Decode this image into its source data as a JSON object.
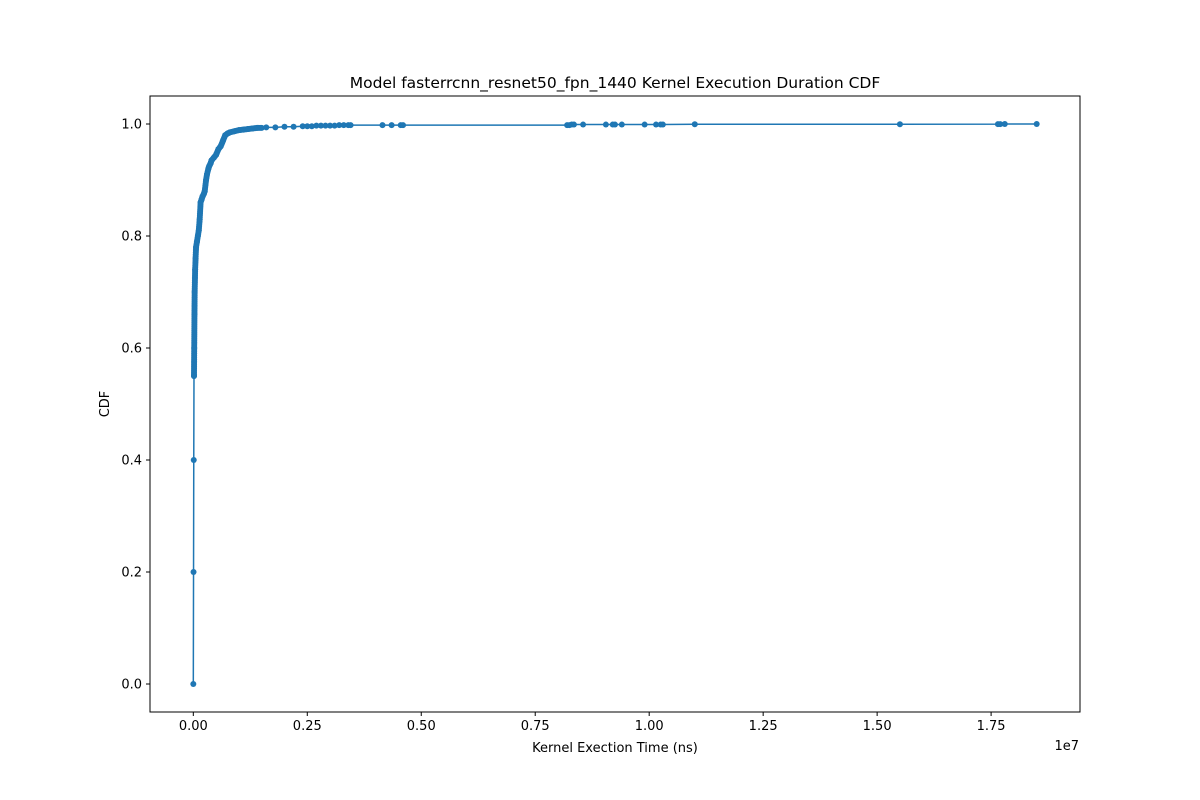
{
  "chart_data": {
    "type": "line",
    "title": "Model fasterrcnn_resnet50_fpn_1440 Kernel Execution Duration CDF",
    "xlabel": "Kernel Exection Time (ns)",
    "ylabel": "CDF",
    "x_offset_label": "1e7",
    "x_scale": 10000000,
    "xlim": [
      -950000,
      19450000
    ],
    "ylim": [
      -0.05,
      1.05
    ],
    "x_ticks": [
      0,
      2500000,
      5000000,
      7500000,
      10000000,
      12500000,
      15000000,
      17500000
    ],
    "x_tick_labels": [
      "0.00",
      "0.25",
      "0.50",
      "0.75",
      "1.00",
      "1.25",
      "1.50",
      "1.75"
    ],
    "y_ticks": [
      0.0,
      0.2,
      0.4,
      0.6,
      0.8,
      1.0
    ],
    "y_tick_labels": [
      "0.0",
      "0.2",
      "0.4",
      "0.6",
      "0.8",
      "1.0"
    ],
    "grid": false,
    "legend": "none",
    "marker": "circle",
    "series": [
      {
        "color": "#1f77b4",
        "x": [
          0,
          5000,
          10000,
          15000,
          20000,
          25000,
          30000,
          40000,
          50000,
          60000,
          80000,
          100000,
          120000,
          140000,
          160000,
          180000,
          200000,
          230000,
          250000,
          280000,
          300000,
          330000,
          350000,
          380000,
          400000,
          450000,
          500000,
          550000,
          600000,
          650000,
          700000,
          750000,
          800000,
          900000,
          1000000,
          1100000,
          1200000,
          1300000,
          1400000,
          1500000,
          1600000,
          1800000,
          2000000,
          2200000,
          2400000,
          2500000,
          2600000,
          2700000,
          2800000,
          2900000,
          3000000,
          3100000,
          3200000,
          3300000,
          3400000,
          3450000,
          4150000,
          4350000,
          4550000,
          4600000,
          8200000,
          8250000,
          8300000,
          8350000,
          8550000,
          9050000,
          9200000,
          9250000,
          9400000,
          9900000,
          10150000,
          10250000,
          10300000,
          11000000,
          15500000,
          17650000,
          17700000,
          17800000,
          18500000
        ],
        "y": [
          0.0,
          0.2,
          0.4,
          0.55,
          0.6,
          0.66,
          0.7,
          0.74,
          0.76,
          0.78,
          0.79,
          0.8,
          0.81,
          0.83,
          0.86,
          0.865,
          0.87,
          0.875,
          0.88,
          0.9,
          0.91,
          0.92,
          0.925,
          0.93,
          0.935,
          0.94,
          0.945,
          0.955,
          0.96,
          0.97,
          0.98,
          0.983,
          0.985,
          0.987,
          0.989,
          0.99,
          0.991,
          0.992,
          0.993,
          0.993,
          0.994,
          0.994,
          0.995,
          0.995,
          0.996,
          0.996,
          0.996,
          0.997,
          0.997,
          0.997,
          0.997,
          0.997,
          0.998,
          0.998,
          0.998,
          0.998,
          0.998,
          0.998,
          0.998,
          0.998,
          0.998,
          0.998,
          0.999,
          0.999,
          0.999,
          0.999,
          0.999,
          0.999,
          0.999,
          0.999,
          0.999,
          0.999,
          0.999,
          0.9995,
          0.9996,
          0.9997,
          0.9998,
          0.9999,
          1.0
        ]
      }
    ]
  }
}
